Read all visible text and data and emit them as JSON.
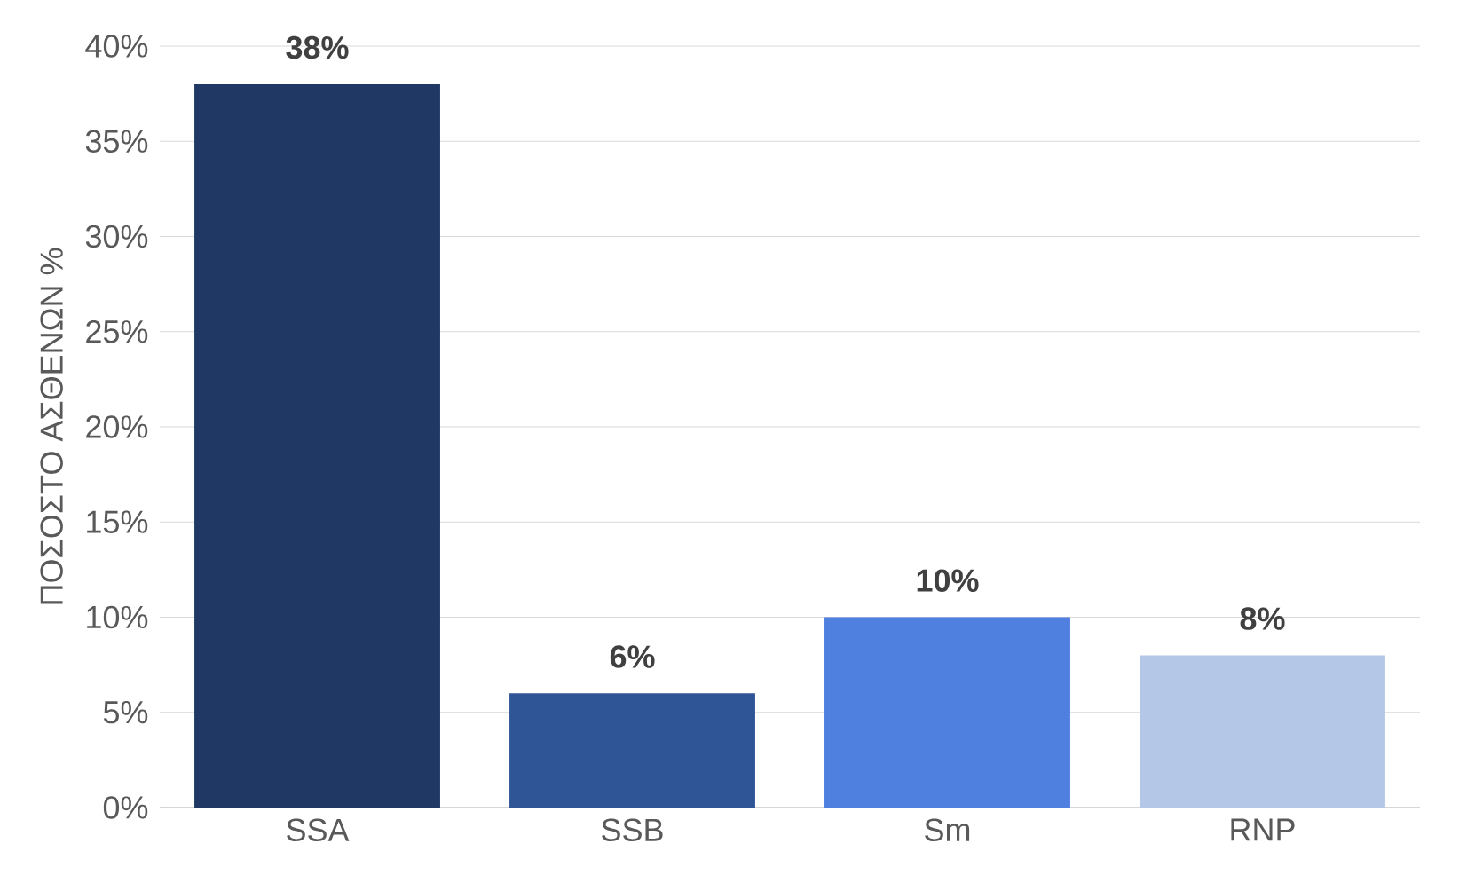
{
  "chart_data": {
    "type": "bar",
    "ylabel": "ΠΟΣΟΣΤΟ ΑΣΘΕΝΩΝ %",
    "categories": [
      "SSA",
      "SSB",
      "Sm",
      "RNP"
    ],
    "values": [
      38,
      6,
      10,
      8
    ],
    "value_labels": [
      "38%",
      "6%",
      "10%",
      "8%"
    ],
    "colors": [
      "#203864",
      "#2f5597",
      "#4f7fdf",
      "#b4c7e7"
    ],
    "ylim": [
      0,
      40
    ],
    "yticks": [
      {
        "value": 0,
        "label": "0%"
      },
      {
        "value": 5,
        "label": "5%"
      },
      {
        "value": 10,
        "label": "10%"
      },
      {
        "value": 15,
        "label": "15%"
      },
      {
        "value": 20,
        "label": "20%"
      },
      {
        "value": 25,
        "label": "25%"
      },
      {
        "value": 30,
        "label": "30%"
      },
      {
        "value": 35,
        "label": "35%"
      },
      {
        "value": 40,
        "label": "40%"
      }
    ],
    "grid": "y"
  }
}
